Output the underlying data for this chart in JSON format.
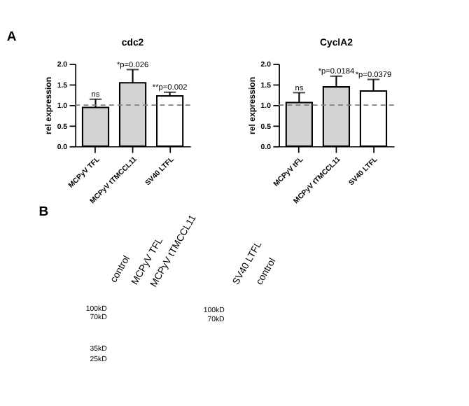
{
  "chart_data": [
    {
      "type": "bar",
      "title": "cdc2",
      "ylabel": "rel expression",
      "categories": [
        "MCPyV TFL",
        "MCPyV tTMCCL11",
        "SV40 LTFL"
      ],
      "values": [
        0.94,
        1.54,
        1.22
      ],
      "colors": [
        "#d3d3d3",
        "#d3d3d3",
        "#ffffff"
      ],
      "errors": [
        0.2,
        0.32,
        0.09
      ],
      "ylim": [
        0,
        2
      ],
      "yticks": [
        {
          "value": 0,
          "label": "0.0"
        },
        {
          "value": 0.5,
          "label": "0.5"
        },
        {
          "value": 1,
          "label": "1.0"
        },
        {
          "value": 1.5,
          "label": "1.5"
        },
        {
          "value": 2,
          "label": "2.0"
        }
      ],
      "ref_lines": [
        {
          "axis": "y",
          "value": 1,
          "line_style": "dashed",
          "color": "#808080"
        }
      ],
      "grid": false,
      "annotations": [
        "A",
        {
          "text": "ns",
          "x": "MCPyV TFL",
          "y": 1.14
        },
        {
          "text": "*p=0.026",
          "x": "MCPyV tTMCCL11",
          "y": 1.86
        },
        {
          "text": "**p=0.002",
          "x": "SV40 LTFL",
          "y": 1.31
        }
      ]
    },
    {
      "type": "bar",
      "title": "CyclA2",
      "ylabel": "rel expression",
      "categories": [
        "MCPyV tFL",
        "MCPyV tTMCCL11",
        "SV40 LTFL"
      ],
      "values": [
        1.06,
        1.44,
        1.34
      ],
      "colors": [
        "#d3d3d3",
        "#d3d3d3",
        "#ffffff"
      ],
      "errors": [
        0.24,
        0.26,
        0.28
      ],
      "ylim": [
        0,
        2
      ],
      "yticks": [
        {
          "value": 0,
          "label": "0.0"
        },
        {
          "value": 0.5,
          "label": "0.5"
        },
        {
          "value": 1,
          "label": "1.0"
        },
        {
          "value": 1.5,
          "label": "1.5"
        },
        {
          "value": 2,
          "label": "2.0"
        }
      ],
      "ref_lines": [
        {
          "axis": "y",
          "value": 1,
          "line_style": "dashed",
          "color": "#808080"
        }
      ],
      "grid": false,
      "annotations": [
        {
          "text": "ns",
          "x": "MCPyV tFL",
          "y": 1.3
        },
        {
          "text": "*p=0.0184",
          "x": "MCPyV tTMCCL11",
          "y": 1.7
        },
        {
          "text": "*p=0.0379",
          "x": "SV40 LTFL",
          "y": 1.62
        }
      ]
    },
    {
      "type": "other",
      "annotations": [
        "B",
        "control",
        "MCPyV TFL",
        "MCPyV tTMCCL11",
        "100kD",
        "70kD",
        "35kD",
        "25kD",
        "SV40 LTFL",
        "control",
        "100kD",
        "70kD"
      ]
    }
  ]
}
